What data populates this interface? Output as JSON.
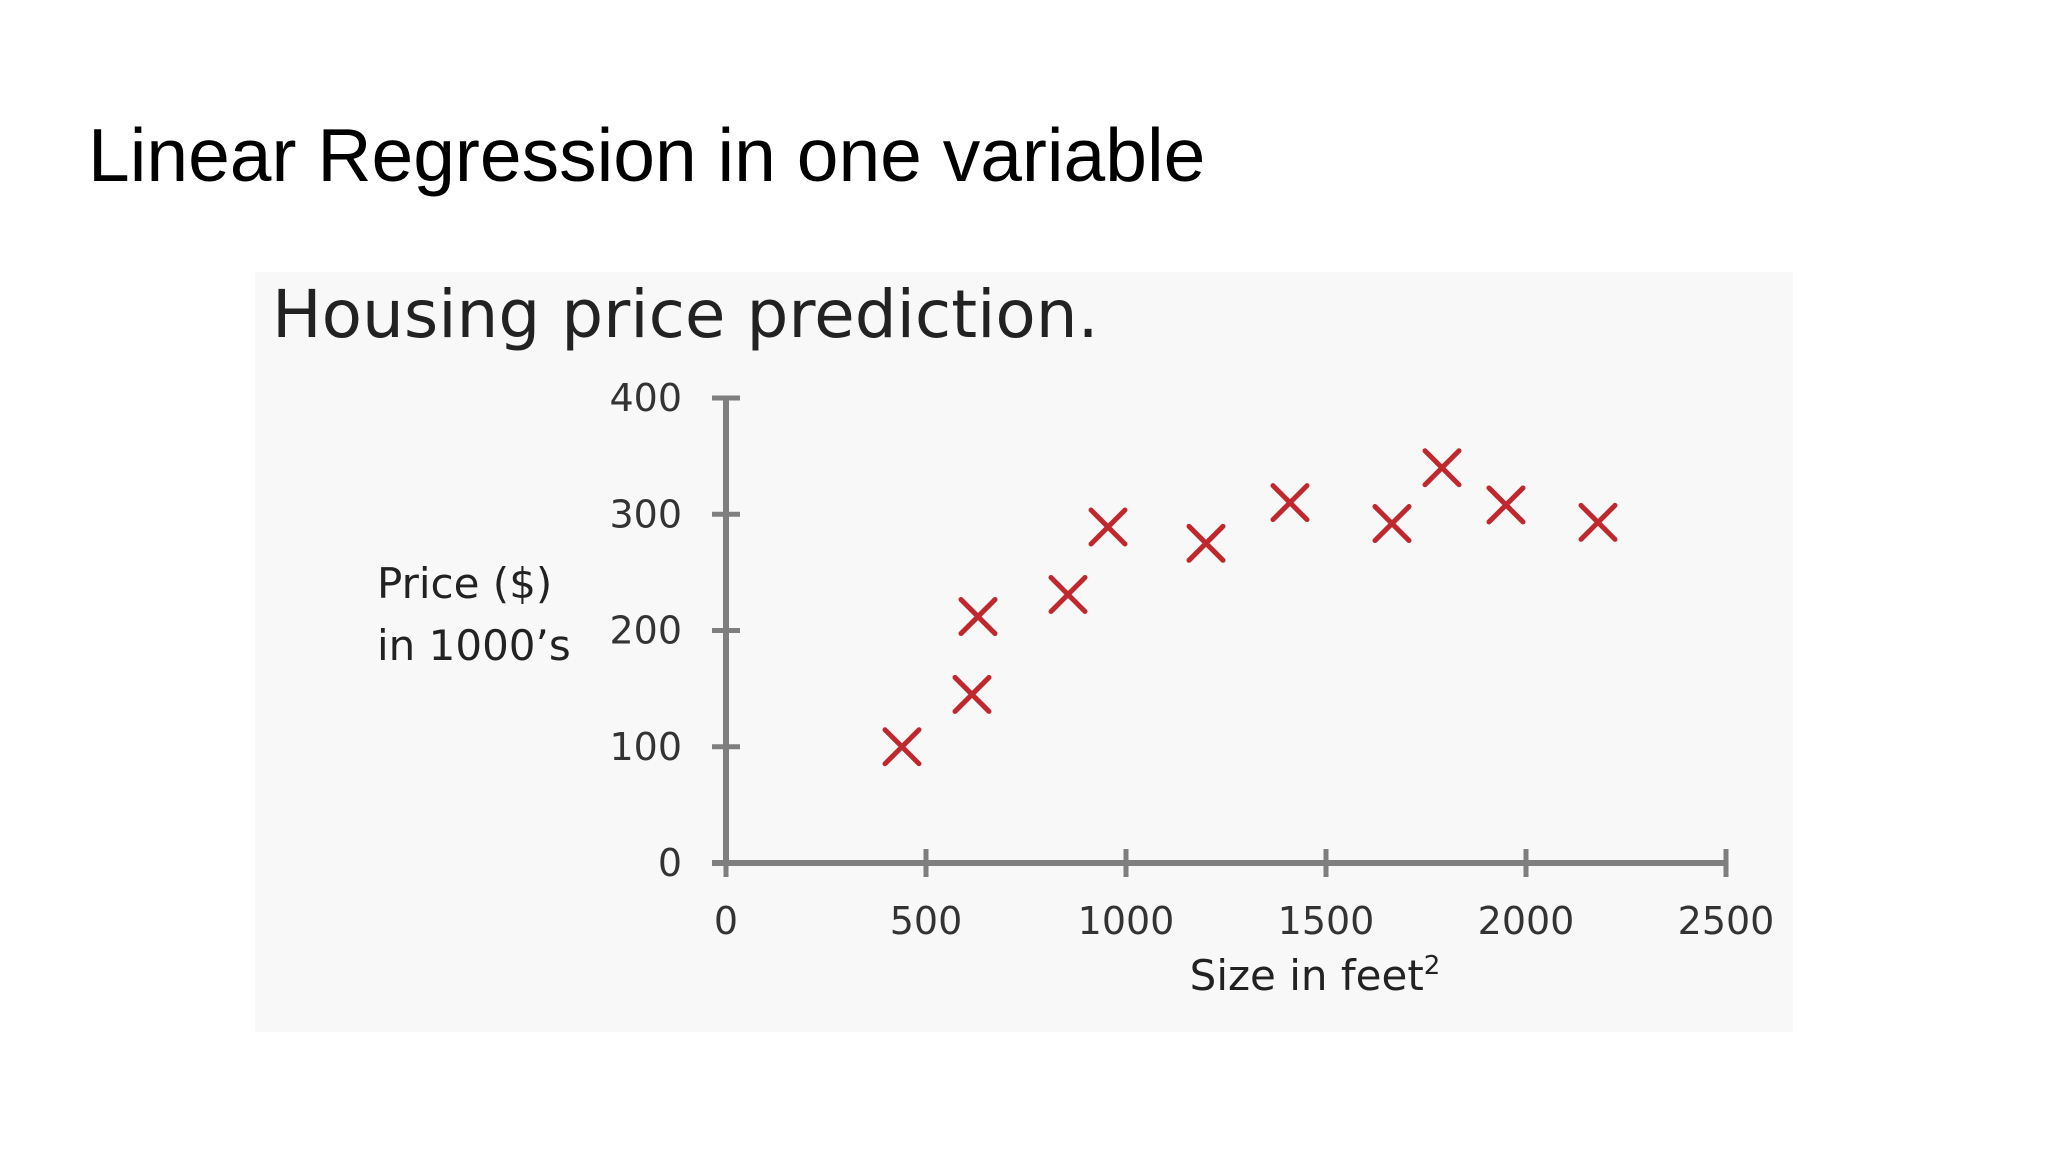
{
  "slide": {
    "title": "Linear Regression in one variable"
  },
  "chart_data": {
    "type": "scatter",
    "title": "Housing price prediction.",
    "xlabel": "Size in feet",
    "xlabel_superscript": "2",
    "ylabel_lines": [
      "Price ($)",
      "in 1000’s"
    ],
    "xlim": [
      0,
      2500
    ],
    "ylim": [
      0,
      400
    ],
    "x_ticks": [
      "0",
      "500",
      "1000",
      "1500",
      "2000",
      "2500"
    ],
    "y_ticks": [
      "0",
      "100",
      "200",
      "300",
      "400"
    ],
    "grid": false,
    "legend": "none",
    "marker": "x",
    "marker_color": "#c0282d",
    "axis_color": "#7f7f7f",
    "points": [
      {
        "x": 440,
        "y": 100
      },
      {
        "x": 615,
        "y": 145
      },
      {
        "x": 630,
        "y": 212
      },
      {
        "x": 855,
        "y": 231
      },
      {
        "x": 955,
        "y": 289
      },
      {
        "x": 1200,
        "y": 275
      },
      {
        "x": 1410,
        "y": 310
      },
      {
        "x": 1665,
        "y": 292
      },
      {
        "x": 1790,
        "y": 340
      },
      {
        "x": 1950,
        "y": 308
      },
      {
        "x": 2180,
        "y": 293
      }
    ]
  }
}
